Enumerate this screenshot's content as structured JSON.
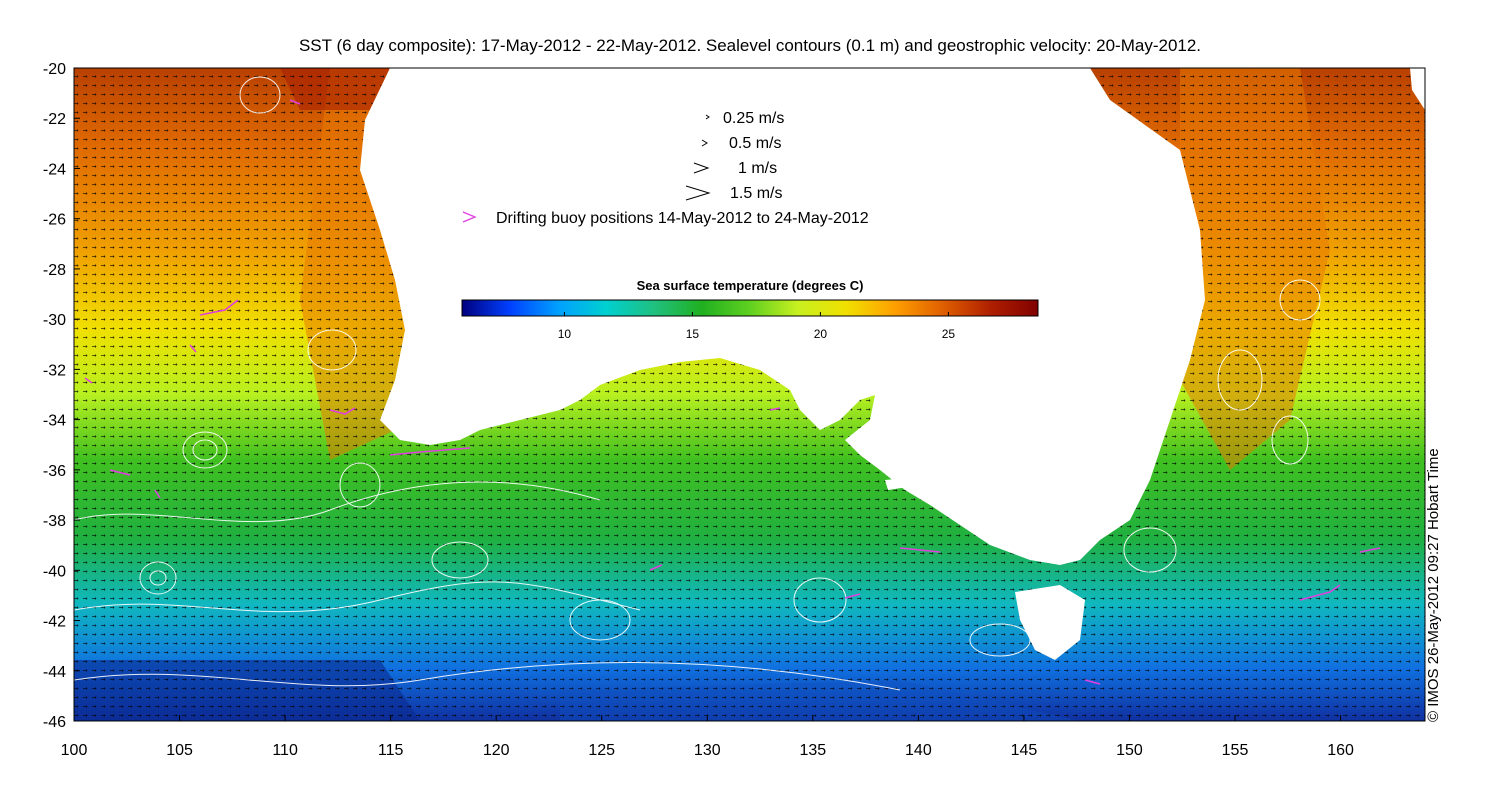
{
  "title": "SST (6 day composite): 17-May-2012 - 22-May-2012. Sealevel contours (0.1 m) and geostrophic velocity: 20-May-2012.",
  "credit": "© IMOS 26-May-2012 09:27 Hobart Time",
  "legend": {
    "items": [
      {
        "label": "0.25 m/s"
      },
      {
        "label": "0.5 m/s"
      },
      {
        "label": "1 m/s"
      },
      {
        "label": "1.5 m/s"
      },
      {
        "label": "Drifting buoy positions 14-May-2012 to 24-May-2012"
      }
    ]
  },
  "colorbar": {
    "title": "Sea surface temperature (degrees C)",
    "range": [
      6,
      28.5
    ],
    "ticks": [
      {
        "value": 10,
        "label": "10"
      },
      {
        "value": 15,
        "label": "15"
      },
      {
        "value": 20,
        "label": "20"
      },
      {
        "value": 25,
        "label": "25"
      }
    ],
    "colors": [
      "#00007f",
      "#0040ff",
      "#00a0ff",
      "#00d0d0",
      "#20c080",
      "#20b020",
      "#60d020",
      "#c8f020",
      "#f0e000",
      "#ffa000",
      "#e06000",
      "#b02000",
      "#800000"
    ]
  },
  "map": {
    "lon_range": [
      100,
      164
    ],
    "lat_range": [
      -46,
      -20
    ],
    "x_ticks": [
      {
        "value": 100,
        "label": "100"
      },
      {
        "value": 105,
        "label": "105"
      },
      {
        "value": 110,
        "label": "110"
      },
      {
        "value": 115,
        "label": "115"
      },
      {
        "value": 120,
        "label": "120"
      },
      {
        "value": 125,
        "label": "125"
      },
      {
        "value": 130,
        "label": "130"
      },
      {
        "value": 135,
        "label": "135"
      },
      {
        "value": 140,
        "label": "140"
      },
      {
        "value": 145,
        "label": "145"
      },
      {
        "value": 150,
        "label": "150"
      },
      {
        "value": 155,
        "label": "155"
      },
      {
        "value": 160,
        "label": "160"
      }
    ],
    "y_ticks": [
      {
        "value": -20,
        "label": "-20"
      },
      {
        "value": -22,
        "label": "-22"
      },
      {
        "value": -24,
        "label": "-24"
      },
      {
        "value": -26,
        "label": "-26"
      },
      {
        "value": -28,
        "label": "-28"
      },
      {
        "value": -30,
        "label": "-30"
      },
      {
        "value": -32,
        "label": "-32"
      },
      {
        "value": -34,
        "label": "-34"
      },
      {
        "value": -36,
        "label": "-36"
      },
      {
        "value": -38,
        "label": "-38"
      },
      {
        "value": -40,
        "label": "-40"
      },
      {
        "value": -42,
        "label": "-42"
      },
      {
        "value": -44,
        "label": "-44"
      },
      {
        "value": -46,
        "label": "-46"
      }
    ],
    "land_color": "#ffffff",
    "buoy_color": "#e040e0",
    "contour_color": "#ffffff",
    "arrow_color": "#000000"
  }
}
